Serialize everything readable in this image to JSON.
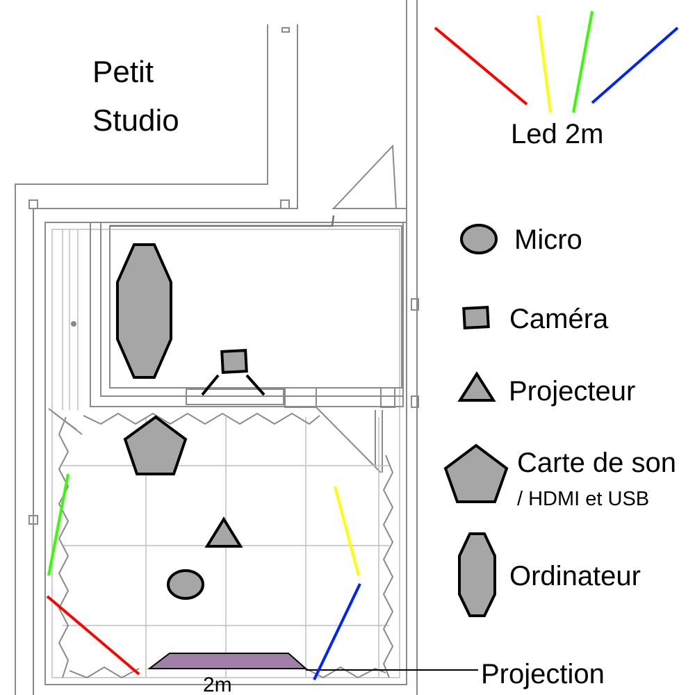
{
  "room": {
    "title_line1": "Petit",
    "title_line2": "Studio"
  },
  "legend": {
    "led_label": "Led 2m",
    "items": {
      "micro": "Micro",
      "camera": "Caméra",
      "projecteur": "Projecteur",
      "carte_de_son_line1": "Carte de son",
      "carte_de_son_line2": "/ HDMI et USB",
      "ordinateur": "Ordinateur"
    }
  },
  "projection": {
    "label": "Projection",
    "width_label": "2m"
  },
  "colors": {
    "led_red": "#ff0000",
    "led_yellow": "#ffff00",
    "led_green": "#33ff00",
    "led_blue": "#0022ff",
    "shape_fill": "#a6a6a6",
    "projection_fill": "#a080a8"
  }
}
